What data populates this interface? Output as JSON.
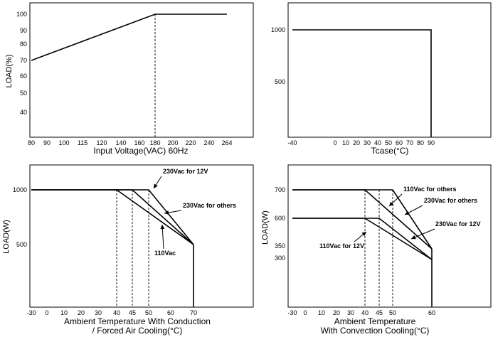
{
  "chart_data": [
    {
      "type": "line",
      "ylabel": "LOAD(%)",
      "xlabel": "Input Voltage(VAC) 60Hz",
      "x_ticks": [
        "80",
        "90",
        "100",
        "115",
        "120",
        "140",
        "160",
        "180",
        "200",
        "220",
        "240",
        "264"
      ],
      "y_ticks": [
        "100",
        "90",
        "80",
        "70",
        "60",
        "50",
        "40"
      ],
      "xlim": [
        80,
        264
      ],
      "ylim": [
        30,
        100
      ],
      "series": [
        {
          "x": [
            "80",
            "180",
            "264"
          ],
          "y": [
            70,
            100,
            100
          ]
        }
      ],
      "vlines": [
        {
          "x": "180",
          "y_to": 100
        }
      ]
    },
    {
      "type": "line",
      "ylabel": "",
      "xlabel": "Tcase(°C)",
      "x_ticks": [
        "-40",
        "0",
        "10",
        "20",
        "30",
        "40",
        "50",
        "60",
        "70",
        "80",
        "90"
      ],
      "y_ticks": [
        "1000",
        "500"
      ],
      "xlim": [
        -40,
        90
      ],
      "ylim": [
        0,
        1000
      ],
      "series": [
        {
          "x": [
            -40,
            90,
            90
          ],
          "y": [
            1000,
            1000,
            0
          ]
        }
      ]
    },
    {
      "type": "line",
      "ylabel": "LOAD(W)",
      "xlabel": "Ambient Temperature With Conduction",
      "xlabel2": "/ Forced Air Cooling(°C)",
      "x_ticks": [
        "-30",
        "0",
        "10",
        "20",
        "30",
        "40",
        "45",
        "50",
        "60",
        "70"
      ],
      "y_ticks": [
        "1000",
        "500"
      ],
      "xlim": [
        -30,
        70
      ],
      "ylim": [
        0,
        1000
      ],
      "series": [
        {
          "name": "230Vac for 12V",
          "x": [
            -30,
            50,
            70
          ],
          "y": [
            1000,
            1000,
            500
          ]
        },
        {
          "name": "230Vac for others",
          "x": [
            -30,
            45,
            70
          ],
          "y": [
            1000,
            1000,
            500
          ]
        },
        {
          "name": "110Vac",
          "x": [
            -30,
            40,
            70
          ],
          "y": [
            1000,
            1000,
            500
          ]
        },
        {
          "x": [
            70,
            70
          ],
          "y": [
            500,
            0
          ]
        }
      ],
      "vlines": [
        {
          "x": 40,
          "y_to": 1000
        },
        {
          "x": 45,
          "y_to": 1000
        },
        {
          "x": 50,
          "y_to": 1000
        }
      ]
    },
    {
      "type": "line",
      "ylabel": "LOAD(W)",
      "xlabel": "Ambient Temperature",
      "xlabel2": "With Convection Cooling(°C)",
      "x_ticks": [
        "-30",
        "0",
        "10",
        "20",
        "30",
        "40",
        "45",
        "50",
        "60"
      ],
      "y_ticks": [
        "700",
        "600",
        "350",
        "300"
      ],
      "xlim": [
        -30,
        60
      ],
      "ylim": [
        0,
        700
      ],
      "series": [
        {
          "name": "110Vac for others",
          "x": [
            -30,
            40,
            60
          ],
          "y": [
            700,
            700,
            350
          ]
        },
        {
          "name": "230Vac for others",
          "x": [
            -30,
            50,
            60
          ],
          "y": [
            700,
            700,
            350
          ]
        },
        {
          "name": "230Vac for 12V",
          "x": [
            -30,
            45,
            60
          ],
          "y": [
            600,
            600,
            300
          ]
        },
        {
          "name": "110Vac for 12V",
          "x": [
            -30,
            40,
            60
          ],
          "y": [
            600,
            600,
            300
          ]
        },
        {
          "x": [
            60,
            60
          ],
          "y": [
            350,
            0
          ]
        }
      ],
      "vlines": [
        {
          "x": 40,
          "y_to": 700
        },
        {
          "x": 45,
          "y_to": 700
        },
        {
          "x": 50,
          "y_to": 700
        }
      ]
    }
  ]
}
